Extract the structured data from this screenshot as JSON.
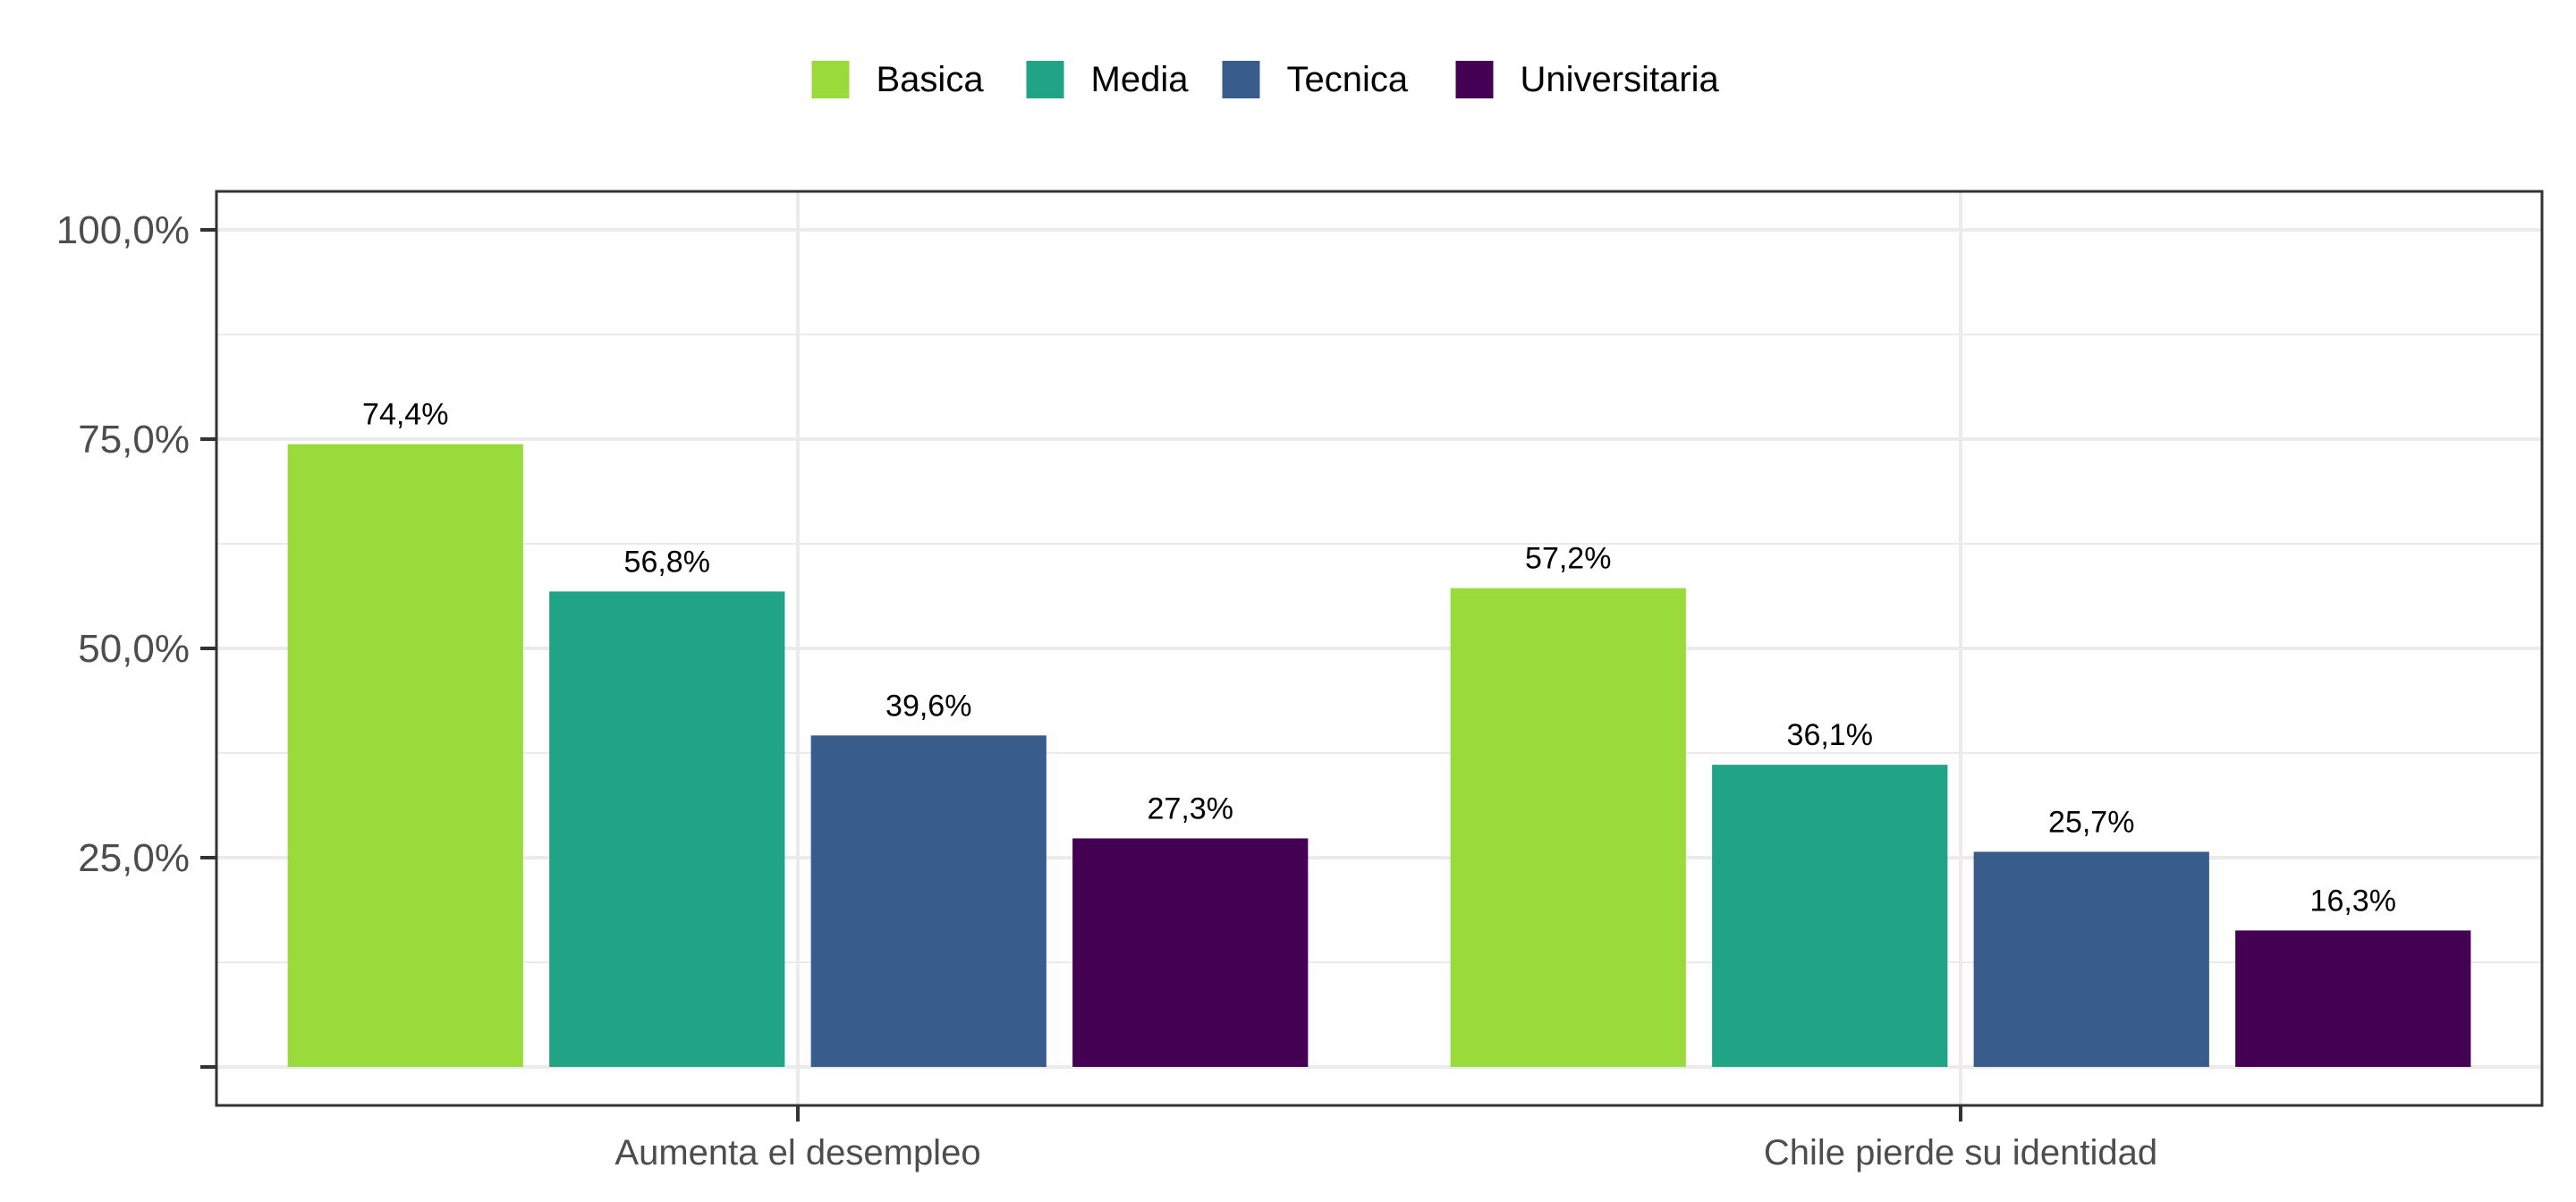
{
  "chart_data": {
    "type": "bar",
    "categories": [
      "Aumenta el desempleo",
      "Chile pierde su identidad"
    ],
    "series": [
      {
        "name": "Basica",
        "color": "#9ADB3C",
        "values": [
          74.4,
          57.2
        ],
        "labels": [
          "74,4%",
          "57,2%"
        ]
      },
      {
        "name": "Media",
        "color": "#21A386",
        "values": [
          56.8,
          36.1
        ],
        "labels": [
          "56,8%",
          "36,1%"
        ]
      },
      {
        "name": "Tecnica",
        "color": "#385C8C",
        "values": [
          39.6,
          25.7
        ],
        "labels": [
          "39,6%",
          "25,7%"
        ]
      },
      {
        "name": "Universitaria",
        "color": "#440154",
        "values": [
          27.3,
          16.3
        ],
        "labels": [
          "27,3%",
          "16,3%"
        ]
      }
    ],
    "y_ticks": [
      {
        "value": 100,
        "label": "100,0%"
      },
      {
        "value": 75,
        "label": "75,0%"
      },
      {
        "value": 50,
        "label": "50,0%"
      },
      {
        "value": 25,
        "label": "25,0%"
      },
      {
        "value": 0,
        "label": ""
      }
    ],
    "ylim": [
      -4.6,
      104.6
    ],
    "grid": true,
    "legend_position": "top-center"
  }
}
